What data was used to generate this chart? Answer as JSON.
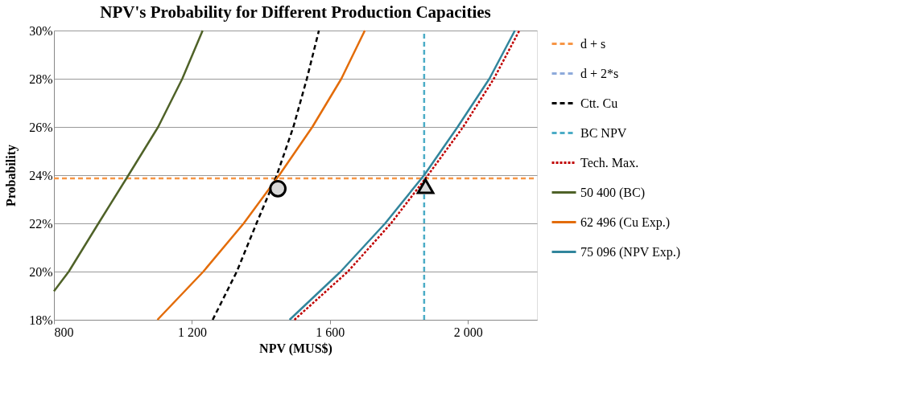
{
  "chart_data": {
    "type": "line",
    "title": "NPV's Probability  for Different Production Capacities",
    "xlabel": "NPV (MUS$)",
    "ylabel": "Probability",
    "xlim": [
      800,
      2200
    ],
    "xticks": [
      800,
      {
        "value": 1200,
        "label": "1 200"
      },
      {
        "value": 1600,
        "label": "1 600"
      },
      {
        "value": 2000,
        "label": "2 000"
      }
    ],
    "ylim": [
      18,
      30
    ],
    "yticks": [
      {
        "value": 18,
        "label": "18%"
      },
      {
        "value": 20,
        "label": "20%"
      },
      {
        "value": 22,
        "label": "22%"
      },
      {
        "value": 24,
        "label": "24%"
      },
      {
        "value": 26,
        "label": "26%"
      },
      {
        "value": 28,
        "label": "28%"
      },
      {
        "value": 30,
        "label": "30%"
      }
    ],
    "grid": "y",
    "legend": "right",
    "series": [
      {
        "name": "d + s",
        "color": "#f79646",
        "line_style": "dashed",
        "x": [
          800,
          2200
        ],
        "values": [
          23.87,
          23.87
        ]
      },
      {
        "name": "d + 2*s",
        "color": "#8eaadb",
        "line_style": "dashed"
      },
      {
        "name": "Ctt. Cu",
        "color": "#000000",
        "line_style": "dashed",
        "x": [
          1260,
          1330,
          1387,
          1446,
          1494,
          1533,
          1568
        ],
        "values": [
          18,
          20,
          22,
          24,
          26,
          28,
          30
        ]
      },
      {
        "name": "BC NPV",
        "color": "#4bacc6",
        "line_style": "dashed",
        "x": [
          1873,
          1873
        ],
        "values": [
          18,
          30
        ]
      },
      {
        "name": "Tech. Max.",
        "color": "#c00000",
        "line_style": "dotted",
        "x": [
          1497,
          1652,
          1777,
          1884,
          1986,
          2075,
          2149
        ],
        "values": [
          18,
          20,
          22,
          24,
          26,
          28,
          30
        ]
      },
      {
        "name": " 50 400  (BC)",
        "color": "#4f6228",
        "line_style": "solid",
        "x": [
          800,
          843,
          929,
          1016,
          1102,
          1172,
          1231
        ],
        "values": [
          19.18,
          20,
          22,
          24,
          26,
          28,
          30
        ]
      },
      {
        "name": " 62 496  (Cu Exp.)",
        "color": "#e36c09",
        "line_style": "solid",
        "x": [
          1100,
          1233,
          1350,
          1453,
          1549,
          1633,
          1701
        ],
        "values": [
          18,
          20,
          22,
          24,
          26,
          28,
          30
        ]
      },
      {
        "name": " 75 096  (NPV Exp.)",
        "color": "#31859c",
        "line_style": "solid",
        "x": [
          1483,
          1631,
          1760,
          1873,
          1970,
          2062,
          2136
        ],
        "values": [
          18,
          20,
          22,
          24,
          26,
          28,
          30
        ]
      },
      {
        "type": "scatter",
        "marker": "circle",
        "color": "#d9d9d9",
        "x": [
          1449
        ],
        "values": [
          23.44
        ]
      },
      {
        "type": "scatter",
        "marker": "triangle",
        "color": "#d9d9d9",
        "x": [
          1877
        ],
        "values": [
          23.54
        ]
      }
    ]
  }
}
